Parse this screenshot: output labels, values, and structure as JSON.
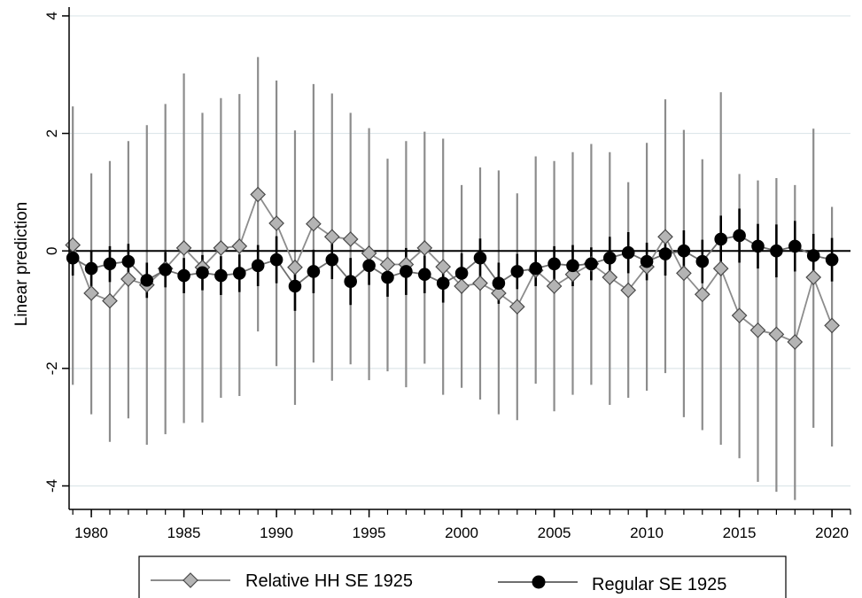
{
  "chart_data": {
    "type": "scatter",
    "title": "",
    "xlabel": "",
    "ylabel": "Linear prediction",
    "x_ticks": [
      1980,
      1985,
      1990,
      1995,
      2000,
      2005,
      2010,
      2015,
      2020
    ],
    "y_ticks": [
      -4,
      -2,
      0,
      2,
      4
    ],
    "xlim": [
      1978.8,
      2021
    ],
    "ylim": [
      -4.4,
      4.15
    ],
    "grid": true,
    "reference_line_y": 0,
    "legend_position": "bottom",
    "series": [
      {
        "name": "Relative HH SE 1925",
        "marker": "diamond",
        "color": "#8c8c8c",
        "marker_fill": "#b4b4b4",
        "x": [
          1979,
          1980,
          1981,
          1982,
          1983,
          1984,
          1985,
          1986,
          1987,
          1988,
          1989,
          1990,
          1991,
          1992,
          1993,
          1994,
          1995,
          1996,
          1997,
          1998,
          1999,
          2000,
          2001,
          2002,
          2003,
          2004,
          2005,
          2006,
          2007,
          2008,
          2009,
          2010,
          2011,
          2012,
          2013,
          2014,
          2015,
          2016,
          2017,
          2018,
          2019,
          2020
        ],
        "y": [
          0.1,
          -0.72,
          -0.85,
          -0.48,
          -0.58,
          -0.3,
          0.05,
          -0.28,
          0.05,
          0.08,
          0.96,
          0.47,
          -0.28,
          0.46,
          0.24,
          0.2,
          -0.04,
          -0.23,
          -0.23,
          0.05,
          -0.27,
          -0.6,
          -0.55,
          -0.72,
          -0.95,
          -0.33,
          -0.6,
          -0.4,
          -0.22,
          -0.45,
          -0.67,
          -0.27,
          0.24,
          -0.38,
          -0.74,
          -0.3,
          -1.1,
          -1.35,
          -1.42,
          -1.55,
          -0.45,
          -1.27
        ],
        "ci_low": [
          -2.28,
          -2.78,
          -3.25,
          -2.85,
          -3.3,
          -3.12,
          -2.93,
          -2.92,
          -2.5,
          -2.47,
          -1.37,
          -1.96,
          -2.62,
          -1.9,
          -2.21,
          -1.93,
          -2.2,
          -2.05,
          -2.32,
          -1.92,
          -2.45,
          -2.33,
          -2.53,
          -2.78,
          -2.88,
          -2.26,
          -2.73,
          -2.45,
          -2.28,
          -2.62,
          -2.5,
          -2.38,
          -2.08,
          -2.83,
          -3.05,
          -3.3,
          -3.53,
          -3.93,
          -4.1,
          -4.24,
          -3.01,
          -3.33
        ],
        "ci_high": [
          2.46,
          1.32,
          1.53,
          1.87,
          2.14,
          2.5,
          3.02,
          2.35,
          2.6,
          2.67,
          3.3,
          2.9,
          2.05,
          2.84,
          2.68,
          2.35,
          2.09,
          1.57,
          1.87,
          2.03,
          1.91,
          1.12,
          1.42,
          1.37,
          0.98,
          1.61,
          1.53,
          1.68,
          1.82,
          1.68,
          1.17,
          1.84,
          2.58,
          2.06,
          1.56,
          2.7,
          1.31,
          1.2,
          1.24,
          1.12,
          2.08,
          0.75
        ]
      },
      {
        "name": "Regular SE 1925",
        "marker": "circle",
        "color": "#000000",
        "marker_fill": "#000000",
        "x": [
          1979,
          1980,
          1981,
          1982,
          1983,
          1984,
          1985,
          1986,
          1987,
          1988,
          1989,
          1990,
          1991,
          1992,
          1993,
          1994,
          1995,
          1996,
          1997,
          1998,
          1999,
          2000,
          2001,
          2002,
          2003,
          2004,
          2005,
          2006,
          2007,
          2008,
          2009,
          2010,
          2011,
          2012,
          2013,
          2014,
          2015,
          2016,
          2017,
          2018,
          2019,
          2020
        ],
        "y": [
          -0.12,
          -0.3,
          -0.22,
          -0.18,
          -0.5,
          -0.32,
          -0.42,
          -0.37,
          -0.42,
          -0.38,
          -0.25,
          -0.15,
          -0.6,
          -0.35,
          -0.15,
          -0.52,
          -0.25,
          -0.45,
          -0.35,
          -0.4,
          -0.55,
          -0.38,
          -0.12,
          -0.55,
          -0.35,
          -0.3,
          -0.22,
          -0.25,
          -0.22,
          -0.12,
          -0.03,
          -0.18,
          -0.05,
          0.0,
          -0.18,
          0.2,
          0.26,
          0.08,
          0.0,
          0.08,
          -0.08,
          -0.15
        ],
        "ci_low": [
          -0.42,
          -0.6,
          -0.53,
          -0.48,
          -0.8,
          -0.62,
          -0.72,
          -0.67,
          -0.75,
          -0.7,
          -0.6,
          -0.55,
          -1.02,
          -0.72,
          -0.48,
          -0.92,
          -0.58,
          -0.78,
          -0.75,
          -0.72,
          -0.88,
          -0.72,
          -0.45,
          -0.9,
          -0.65,
          -0.6,
          -0.52,
          -0.6,
          -0.5,
          -0.48,
          -0.38,
          -0.5,
          -0.42,
          -0.35,
          -0.55,
          -0.2,
          -0.2,
          -0.3,
          -0.45,
          -0.35,
          -0.45,
          -0.52
        ],
        "ci_high": [
          0.18,
          0.0,
          0.08,
          0.12,
          -0.2,
          -0.02,
          -0.12,
          -0.07,
          -0.09,
          -0.06,
          0.1,
          0.25,
          -0.18,
          0.02,
          0.18,
          -0.12,
          0.08,
          -0.12,
          0.05,
          -0.08,
          -0.22,
          -0.04,
          0.21,
          -0.2,
          -0.05,
          0.0,
          0.08,
          0.1,
          0.06,
          0.24,
          0.32,
          0.14,
          0.32,
          0.35,
          0.19,
          0.6,
          0.72,
          0.46,
          0.45,
          0.51,
          0.29,
          0.22
        ]
      }
    ]
  }
}
